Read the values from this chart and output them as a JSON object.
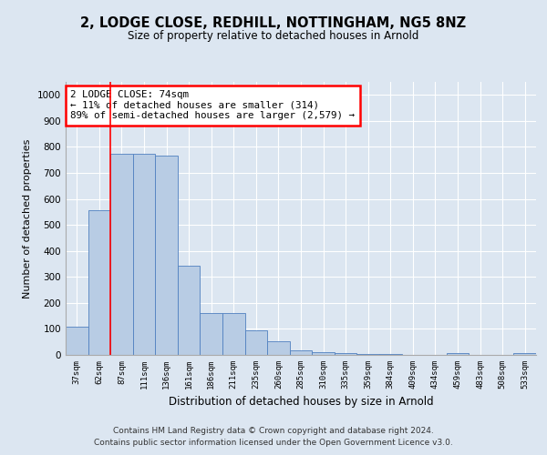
{
  "title": "2, LODGE CLOSE, REDHILL, NOTTINGHAM, NG5 8NZ",
  "subtitle": "Size of property relative to detached houses in Arnold",
  "xlabel": "Distribution of detached houses by size in Arnold",
  "ylabel": "Number of detached properties",
  "categories": [
    "37sqm",
    "62sqm",
    "87sqm",
    "111sqm",
    "136sqm",
    "161sqm",
    "186sqm",
    "211sqm",
    "235sqm",
    "260sqm",
    "285sqm",
    "310sqm",
    "335sqm",
    "359sqm",
    "384sqm",
    "409sqm",
    "434sqm",
    "459sqm",
    "483sqm",
    "508sqm",
    "533sqm"
  ],
  "values": [
    110,
    558,
    775,
    775,
    765,
    343,
    162,
    162,
    95,
    52,
    18,
    12,
    8,
    5,
    5,
    0,
    0,
    8,
    0,
    0,
    8
  ],
  "bar_color": "#b8cce4",
  "bar_edge_color": "#5080c0",
  "annotation_text_line1": "2 LODGE CLOSE: 74sqm",
  "annotation_text_line2": "← 11% of detached houses are smaller (314)",
  "annotation_text_line3": "89% of semi-detached houses are larger (2,579) →",
  "annotation_box_color": "white",
  "annotation_box_edge_color": "red",
  "vline_color": "red",
  "vline_x": 1.5,
  "ylim": [
    0,
    1050
  ],
  "yticks": [
    0,
    100,
    200,
    300,
    400,
    500,
    600,
    700,
    800,
    900,
    1000
  ],
  "background_color": "#dce6f1",
  "plot_bg_color": "#dce6f1",
  "grid_color": "white",
  "footer_line1": "Contains HM Land Registry data © Crown copyright and database right 2024.",
  "footer_line2": "Contains public sector information licensed under the Open Government Licence v3.0."
}
